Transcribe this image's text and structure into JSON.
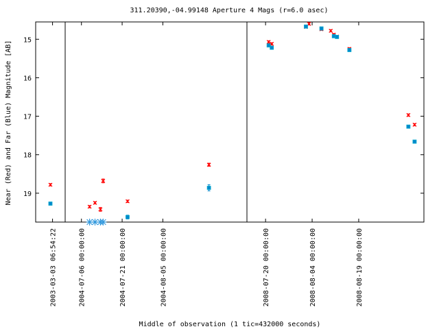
{
  "chart_data": {
    "type": "scatter",
    "title": "311.20390,-04.99148   Aperture 4 Mags (r=6.0 asec)",
    "xlabel": "Middle of observation (1 tic=432000 seconds)",
    "ylabel": "Near (Red) and Far (Blue) Magnitude [AB]",
    "y_inverted": true,
    "ylim": [
      19.75,
      14.55
    ],
    "y_ticks": [
      15,
      16,
      17,
      18,
      19
    ],
    "grid": false,
    "legend": "none",
    "panels": [
      {
        "xlim": [
          "2003-03-01",
          "2003-03-05"
        ],
        "x_ticks": [
          "2003-03-03 06:54:22"
        ]
      },
      {
        "xlim": [
          "2004-06-30",
          "2004-09-05"
        ],
        "x_ticks": [
          "2004-07-06 00:00:00",
          "2004-07-21 00:00:00",
          "2004-08-05 00:00:00"
        ]
      },
      {
        "xlim": [
          "2008-07-14",
          "2008-09-09"
        ],
        "x_ticks": [
          "2008-07-20 00:00:00",
          "2008-08-04 00:00:00",
          "2008-08-19 00:00:00"
        ]
      }
    ],
    "series": [
      {
        "color": "#ff0000",
        "marker": "x",
        "points": [
          {
            "x": "2003-03-03",
            "y": 18.78,
            "err": 0.03
          },
          {
            "x": "2004-07-09",
            "y": 19.35,
            "err": 0.03
          },
          {
            "x": "2004-07-11",
            "y": 19.25,
            "err": 0.03
          },
          {
            "x": "2004-07-13",
            "y": 19.42,
            "err": 0.05
          },
          {
            "x": "2004-07-14",
            "y": 18.68,
            "err": 0.05
          },
          {
            "x": "2004-07-23",
            "y": 19.21,
            "err": 0.03
          },
          {
            "x": "2004-08-22",
            "y": 18.26,
            "err": 0.04
          },
          {
            "x": "2008-07-21",
            "y": 15.07,
            "err": 0.03
          },
          {
            "x": "2008-07-22",
            "y": 15.12,
            "err": 0.03
          },
          {
            "x": "2008-08-02",
            "y": 14.68,
            "err": 0.03
          },
          {
            "x": "2008-08-03",
            "y": 14.6,
            "err": 0.03
          },
          {
            "x": "2008-08-07",
            "y": 14.74,
            "err": 0.03
          },
          {
            "x": "2008-08-10",
            "y": 14.78,
            "err": 0.03
          },
          {
            "x": "2008-08-11",
            "y": 14.88,
            "err": 0.03
          },
          {
            "x": "2008-08-12",
            "y": 14.93,
            "err": 0.03
          },
          {
            "x": "2008-08-16",
            "y": 15.25,
            "err": 0.03
          },
          {
            "x": "2008-09-04",
            "y": 16.97,
            "err": 0.03
          },
          {
            "x": "2008-09-06",
            "y": 17.22,
            "err": 0.03
          }
        ]
      },
      {
        "color": "#0088cc",
        "marker": "square",
        "points": [
          {
            "x": "2003-03-03",
            "y": 19.27,
            "err": 0.03
          },
          {
            "x": "2004-07-23",
            "y": 19.62,
            "err": 0.05
          },
          {
            "x": "2004-08-22",
            "y": 18.86,
            "err": 0.08
          },
          {
            "x": "2008-07-21",
            "y": 15.16,
            "err": 0.03
          },
          {
            "x": "2008-07-22",
            "y": 15.22,
            "err": 0.03
          },
          {
            "x": "2008-08-02",
            "y": 14.67,
            "err": 0.03
          },
          {
            "x": "2008-08-07",
            "y": 14.72,
            "err": 0.03
          },
          {
            "x": "2008-08-11",
            "y": 14.92,
            "err": 0.03
          },
          {
            "x": "2008-08-12",
            "y": 14.94,
            "err": 0.03
          },
          {
            "x": "2008-08-16",
            "y": 15.28,
            "err": 0.03
          },
          {
            "x": "2008-09-04",
            "y": 17.27,
            "err": 0.03
          },
          {
            "x": "2008-09-06",
            "y": 17.66,
            "err": 0.03
          }
        ]
      },
      {
        "color": "#3399dd",
        "marker": "asterisk",
        "points": [
          {
            "x": "2004-07-09",
            "y": 19.75
          },
          {
            "x": "2004-07-11",
            "y": 19.75
          },
          {
            "x": "2004-07-13",
            "y": 19.75
          },
          {
            "x": "2004-07-14",
            "y": 19.75
          }
        ]
      }
    ]
  }
}
